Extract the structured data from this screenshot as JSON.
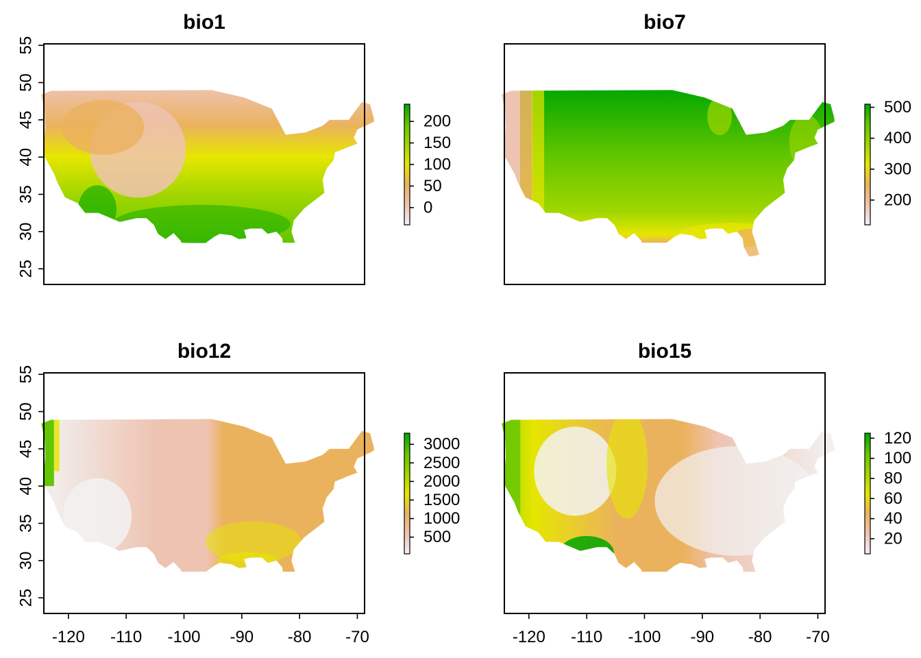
{
  "palette": [
    "#F2F2F2",
    "#EEC3B1",
    "#EBB25E",
    "#E6E600",
    "#A0D600",
    "#63C600",
    "#00A600"
  ],
  "land_color_hint": "terrain.colors",
  "axes": {
    "x_ticks": [
      "-120",
      "-110",
      "-100",
      "-90",
      "-80",
      "-70"
    ],
    "x_values": [
      -120,
      -110,
      -100,
      -90,
      -80,
      -70
    ],
    "y_ticks": [
      "25",
      "30",
      "35",
      "40",
      "45",
      "50",
      "55"
    ],
    "y_values": [
      25,
      30,
      35,
      40,
      45,
      50,
      55
    ],
    "xlim": [
      -124.25,
      -68.75
    ],
    "ylim": [
      22.9,
      55.2
    ]
  },
  "panels": [
    {
      "title": "bio1",
      "pattern": "temperature",
      "zlim": [
        -40,
        240
      ],
      "legend_ticks": [
        "200",
        "150",
        "100",
        "50",
        "0"
      ],
      "legend_values": [
        200,
        150,
        100,
        50,
        0
      ]
    },
    {
      "title": "bio7",
      "pattern": "range",
      "zlim": [
        120,
        510
      ],
      "legend_ticks": [
        "500",
        "400",
        "300",
        "200"
      ],
      "legend_values": [
        500,
        400,
        300,
        200
      ]
    },
    {
      "title": "bio12",
      "pattern": "precip",
      "zlim": [
        50,
        3300
      ],
      "legend_ticks": [
        "3000",
        "2500",
        "2000",
        "1500",
        "1000",
        "500"
      ],
      "legend_values": [
        3000,
        2500,
        2000,
        1500,
        1000,
        500
      ]
    },
    {
      "title": "bio15",
      "pattern": "seasonality",
      "zlim": [
        5,
        125
      ],
      "legend_ticks": [
        "120",
        "100",
        "80",
        "60",
        "40",
        "20"
      ],
      "legend_values": [
        120,
        100,
        80,
        60,
        40,
        20
      ]
    }
  ]
}
